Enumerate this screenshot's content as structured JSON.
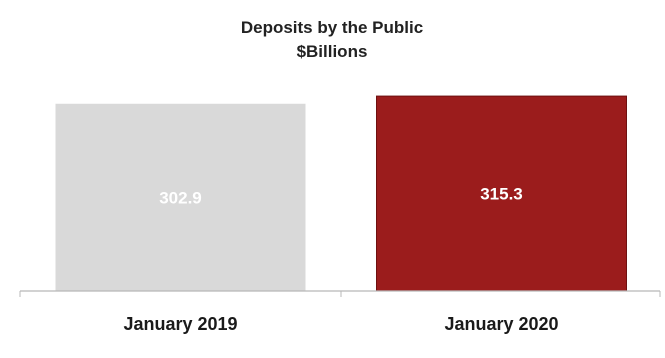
{
  "chart_data": {
    "type": "bar",
    "title": "Deposits by the Public",
    "subtitle": "$Billions",
    "categories": [
      "January 2019",
      "January 2020"
    ],
    "values": [
      302.9,
      315.3
    ],
    "data_labels": [
      "302.9",
      "315.3"
    ],
    "colors": [
      "#d9d9d9",
      "#9b1c1c"
    ],
    "grid": false,
    "legend": "none",
    "ylim": [
      0,
      330
    ]
  }
}
